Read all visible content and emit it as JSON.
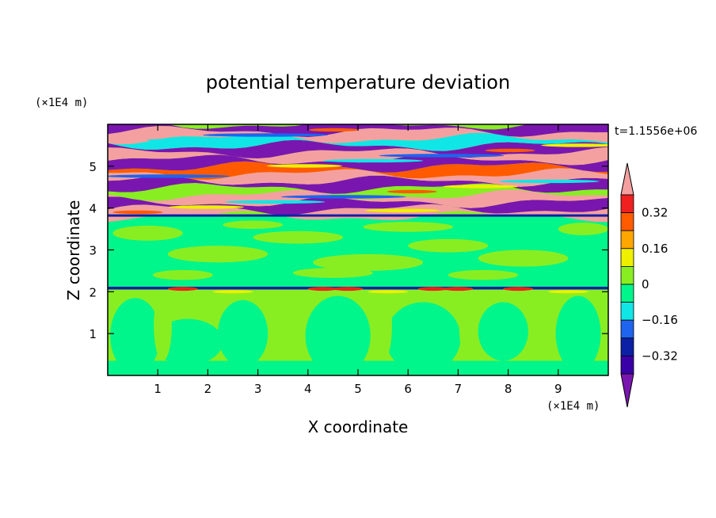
{
  "chart_data": {
    "type": "heatmap",
    "title": "potential temperature deviation",
    "xlabel": "X coordinate",
    "ylabel": "Z coordinate",
    "x_unit": "(×1E4 m)",
    "y_unit": "(×1E4 m)",
    "time_label": "t=1.1556e+06",
    "xlim": [
      0,
      10
    ],
    "ylim": [
      0,
      6
    ],
    "x_ticks": [
      "1",
      "2",
      "3",
      "4",
      "5",
      "6",
      "7",
      "8",
      "9"
    ],
    "y_ticks": [
      "1",
      "2",
      "3",
      "4",
      "5"
    ],
    "colorbar": {
      "levels": [
        -0.4,
        -0.32,
        -0.24,
        -0.16,
        -0.08,
        0,
        0.08,
        0.16,
        0.24,
        0.32,
        0.4
      ],
      "tick_labels": [
        "0.32",
        "0.16",
        "0",
        "−0.16",
        "−0.32"
      ],
      "colors": [
        "#7a16b0",
        "#3a00a8",
        "#0c20a6",
        "#1e64ee",
        "#11e6e6",
        "#00f58a",
        "#88ee22",
        "#eef000",
        "#ffa600",
        "#ff5a00",
        "#ee2020",
        "#f5a0a0"
      ],
      "extend": "both"
    },
    "layers": [
      {
        "zmin": 0.0,
        "zmax": 2.1,
        "description_values": [
          0.02,
          -0.04,
          0.03
        ]
      },
      {
        "zmin": 2.1,
        "zmax": 3.8,
        "description_values": [
          0.01,
          0.04,
          -0.02
        ]
      },
      {
        "zmin": 3.8,
        "zmax": 6.0,
        "description_values": [
          0.45,
          -0.45,
          0.3
        ]
      }
    ]
  }
}
